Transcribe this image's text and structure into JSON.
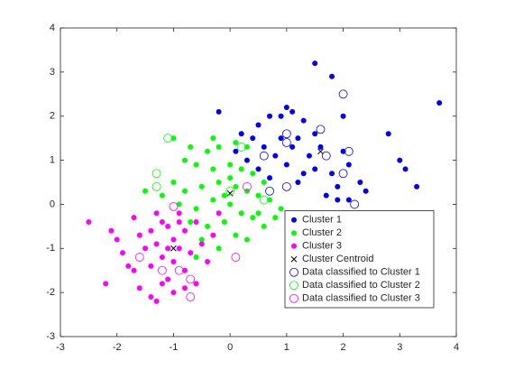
{
  "chart_data": {
    "type": "scatter",
    "xlim": [
      -3,
      4
    ],
    "ylim": [
      -3,
      4
    ],
    "xticks": [
      -3,
      -2,
      -1,
      0,
      1,
      2,
      3,
      4
    ],
    "yticks": [
      -3,
      -2,
      -1,
      0,
      1,
      2,
      3,
      4
    ],
    "legend": "southeast",
    "series": [
      {
        "name": "Cluster 1",
        "color": "#0000ff",
        "marker": "filled",
        "x": [
          1.5,
          1.8,
          3.7,
          1.0,
          1.1,
          0.9,
          0.7,
          -0.2,
          0.5,
          1.3,
          1.5,
          2.0,
          2.8,
          3.0,
          3.1,
          3.3,
          2.4,
          2.3,
          2.1,
          2.0,
          1.6,
          1.5,
          1.3,
          1.8,
          1.9,
          2.1,
          1.7,
          1.2,
          1.0,
          0.8,
          0.6,
          0.4,
          0.3,
          0.5,
          0.7,
          1.1,
          1.4,
          1.9,
          0.2,
          0.1,
          1.2,
          0.9
        ],
        "y": [
          3.2,
          2.9,
          2.3,
          2.2,
          2.1,
          2.0,
          2.0,
          2.1,
          1.8,
          1.9,
          1.6,
          2.0,
          1.6,
          1.0,
          0.8,
          0.4,
          0.3,
          0.5,
          0.9,
          1.2,
          1.3,
          0.8,
          0.7,
          0.7,
          0.4,
          0.1,
          0.2,
          0.5,
          0.9,
          1.1,
          1.3,
          1.5,
          1.0,
          0.8,
          0.6,
          1.3,
          1.1,
          0.1,
          1.6,
          1.2,
          1.5,
          1.5
        ]
      },
      {
        "name": "Cluster 2",
        "color": "#00ff00",
        "marker": "filled",
        "x": [
          -1.0,
          -0.7,
          -0.3,
          -0.4,
          -0.2,
          0.1,
          0.3,
          -0.8,
          -0.6,
          -0.3,
          0.0,
          0.2,
          0.4,
          -1.0,
          -0.8,
          -0.5,
          -0.2,
          0.1,
          0.3,
          0.5,
          0.7,
          -1.2,
          -0.9,
          -0.6,
          -0.3,
          0.0,
          0.2,
          0.4,
          0.6,
          -0.7,
          -0.4,
          -0.1,
          0.1,
          0.3,
          -0.5,
          -0.2,
          -0.6,
          0.5,
          0.8,
          0.0,
          -0.1,
          0.6,
          0.9,
          -1.5
        ],
        "y": [
          1.5,
          1.3,
          1.5,
          1.2,
          1.3,
          1.4,
          1.3,
          1.0,
          0.9,
          0.8,
          0.9,
          0.8,
          0.7,
          0.5,
          0.3,
          0.4,
          0.5,
          0.4,
          0.3,
          0.2,
          0.1,
          0.2,
          0.0,
          -0.1,
          0.1,
          0.0,
          -0.2,
          -0.3,
          -0.5,
          -0.4,
          -0.5,
          -0.4,
          -0.7,
          -0.8,
          -0.8,
          -1.0,
          -1.2,
          -0.2,
          -0.3,
          0.6,
          0.2,
          0.5,
          -0.1,
          0.3
        ]
      },
      {
        "name": "Cluster 3",
        "color": "#ff00ff",
        "marker": "filled",
        "x": [
          -2.5,
          -2.2,
          -2.1,
          -2.0,
          -1.9,
          -1.7,
          -1.7,
          -1.6,
          -1.5,
          -1.4,
          -1.3,
          -1.3,
          -1.2,
          -1.1,
          -1.1,
          -1.0,
          -1.0,
          -0.9,
          -0.9,
          -0.8,
          -0.8,
          -0.7,
          -0.6,
          -0.6,
          -0.5,
          -0.4,
          -1.4,
          -1.3,
          -1.2,
          -1.8,
          -1.6,
          -1.2,
          -0.3,
          -0.2,
          -1.0,
          -0.9,
          -1.4,
          -1.1,
          -0.8
        ],
        "y": [
          -0.4,
          -1.8,
          -0.6,
          -0.8,
          -1.1,
          -0.3,
          -1.5,
          -0.7,
          -1.0,
          -0.6,
          -0.2,
          -0.9,
          -1.2,
          -0.5,
          -1.7,
          -0.8,
          -1.3,
          -0.2,
          -1.0,
          -0.6,
          -1.5,
          -1.1,
          -0.4,
          -1.8,
          -0.9,
          -1.3,
          -2.1,
          -2.2,
          -1.8,
          -1.4,
          -1.9,
          -0.4,
          -0.7,
          -0.2,
          -2.0,
          -0.4,
          -1.4,
          -1.0,
          -1.9
        ]
      },
      {
        "name": "Cluster Centroid",
        "color": "#000000",
        "marker": "x",
        "x": [
          1.6,
          0.0,
          -1.0
        ],
        "y": [
          1.2,
          0.25,
          -1.0
        ]
      },
      {
        "name": "Data classified to Cluster 1",
        "color": "#0000ff",
        "marker": "open",
        "x": [
          2.0,
          1.0,
          1.0,
          1.6,
          1.7,
          2.1,
          2.0,
          1.0,
          2.2,
          0.6,
          0.7
        ],
        "y": [
          2.5,
          1.6,
          1.4,
          1.7,
          1.1,
          1.2,
          0.7,
          0.4,
          0.0,
          1.1,
          0.3
        ]
      },
      {
        "name": "Data classified to Cluster 2",
        "color": "#00ff00",
        "marker": "open",
        "x": [
          -1.1,
          -1.3,
          -1.3,
          0.2,
          0.6,
          0.0
        ],
        "y": [
          1.5,
          0.7,
          0.4,
          1.3,
          0.1,
          0.3
        ]
      },
      {
        "name": "Data classified to Cluster 3",
        "color": "#ff00ff",
        "marker": "open",
        "x": [
          -1.2,
          -0.9,
          -0.7,
          -0.7,
          0.1,
          -1.6,
          -1.0,
          0.3
        ],
        "y": [
          -1.5,
          -1.5,
          -1.7,
          -2.1,
          -1.2,
          -1.2,
          -0.05,
          0.4
        ]
      }
    ]
  }
}
